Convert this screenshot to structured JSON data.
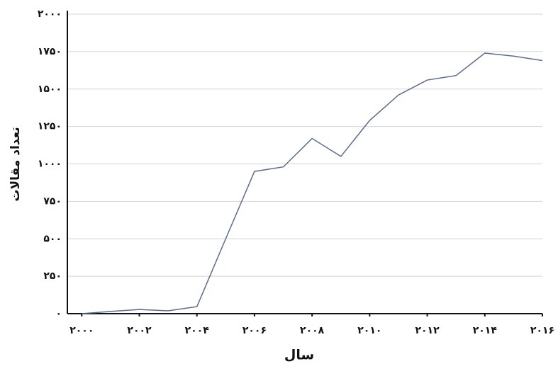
{
  "chart_data": {
    "type": "line",
    "x_label": "سال",
    "y_label": "تعداد مقالات",
    "x": [
      2000,
      2001,
      2002,
      2003,
      2004,
      2005,
      2006,
      2007,
      2008,
      2009,
      2010,
      2011,
      2012,
      2013,
      2014,
      2015,
      2016
    ],
    "series": [
      {
        "name": "تعداد مقالات",
        "color": "#5a6b8c",
        "values": [
          0,
          15,
          28,
          19,
          47,
          500,
          950,
          980,
          1170,
          1050,
          1290,
          1460,
          1560,
          1590,
          1740,
          1720,
          1690
        ]
      }
    ],
    "xlim": [
      1999.5,
      2016
    ],
    "ylim": [
      0,
      2000
    ],
    "xticks": [
      {
        "value": 2000,
        "label": "۲۰۰۰"
      },
      {
        "value": 2002,
        "label": "۲۰۰۲"
      },
      {
        "value": 2004,
        "label": "۲۰۰۴"
      },
      {
        "value": 2006,
        "label": "۲۰۰۶"
      },
      {
        "value": 2008,
        "label": "۲۰۰۸"
      },
      {
        "value": 2010,
        "label": "۲۰۱۰"
      },
      {
        "value": 2012,
        "label": "۲۰۱۲"
      },
      {
        "value": 2014,
        "label": "۲۰۱۴"
      },
      {
        "value": 2016,
        "label": "۲۰۱۶"
      }
    ],
    "yticks": [
      {
        "value": 0,
        "label": "۰"
      },
      {
        "value": 250,
        "label": "۲۵۰"
      },
      {
        "value": 500,
        "label": "۵۰۰"
      },
      {
        "value": 750,
        "label": "۷۵۰"
      },
      {
        "value": 1000,
        "label": "۱۰۰۰"
      },
      {
        "value": 1250,
        "label": "۱۲۵۰"
      },
      {
        "value": 1500,
        "label": "۱۵۰۰"
      },
      {
        "value": 1750,
        "label": "۱۷۵۰"
      },
      {
        "value": 2000,
        "label": "۲۰۰۰"
      }
    ],
    "grid": true
  }
}
